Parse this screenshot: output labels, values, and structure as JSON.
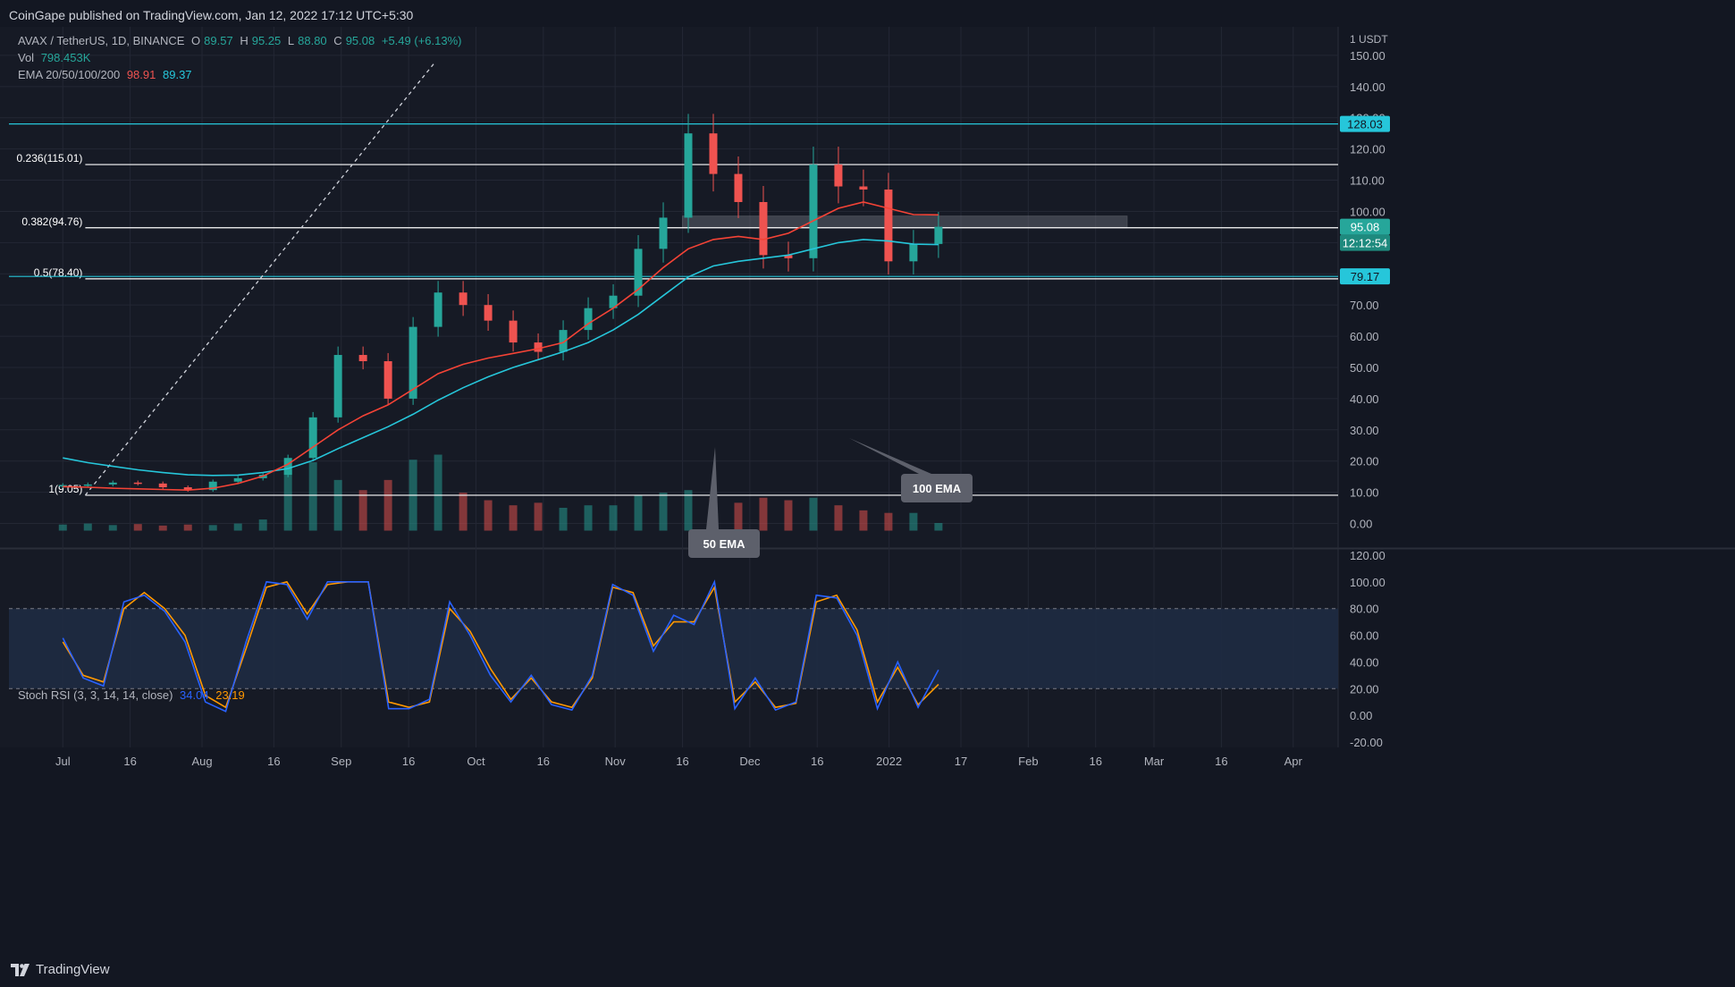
{
  "header": {
    "published": "CoinGape published on TradingView.com, Jan 12, 2022 17:12 UTC+5:30"
  },
  "legend": {
    "symbol": "AVAX / TetherUS, 1D, BINANCE",
    "o_label": "O",
    "o": "89.57",
    "h_label": "H",
    "h": "95.25",
    "l_label": "L",
    "l": "88.80",
    "c_label": "C",
    "c": "95.08",
    "change": "+5.49 (+6.13%)",
    "vol_label": "Vol",
    "vol": "798.453K",
    "ema_label": "EMA 20/50/100/200",
    "ema_a": "98.91",
    "ema_b": "89.37",
    "stoch_label": "Stoch RSI (3, 3, 14, 14, close)",
    "stoch_k": "34.04",
    "stoch_d": "23.19"
  },
  "footer": {
    "brand": "TradingView"
  },
  "colors": {
    "bg": "#161a25",
    "grid": "#232734",
    "up": "#26a69a",
    "down": "#ef5350",
    "ema50": "#f44336",
    "ema100": "#26c6da",
    "fib": "#ffffff",
    "stoch_k": "#2962ff",
    "stoch_d": "#ff9800"
  },
  "chart_data": [
    {
      "type": "candlestick",
      "title": "AVAX / TetherUS, 1D, BINANCE",
      "y_unit": "USDT",
      "scale_label": "1",
      "ylim": [
        -3,
        158
      ],
      "yticks": [
        0,
        10,
        20,
        30,
        40,
        50,
        60,
        70,
        80,
        90,
        100,
        110,
        120,
        130,
        140,
        150
      ],
      "ytick_labels": [
        "0.00",
        "10.00",
        "20.00",
        "30.00",
        "40.00",
        "50.00",
        "60.00",
        "70.00",
        "80.00",
        "90.00",
        "100.00",
        "110.00",
        "120.00",
        "130.00",
        "140.00",
        "150.00"
      ],
      "x_tick_labels": [
        "Jul",
        "16",
        "Aug",
        "16",
        "Sep",
        "16",
        "Oct",
        "16",
        "Nov",
        "16",
        "Dec",
        "16",
        "2022",
        "17",
        "Feb",
        "16",
        "Mar",
        "16",
        "Apr"
      ],
      "x_tick_days": [
        0,
        15,
        31,
        47,
        62,
        77,
        92,
        107,
        123,
        138,
        153,
        168,
        184,
        200,
        215,
        230,
        243,
        258,
        274
      ],
      "x_range_days": [
        -12,
        284
      ],
      "x_ref": "day 0 = 2021-07-01",
      "closes_weekly": [
        12.3,
        12.5,
        13.1,
        12.8,
        11.6,
        10.7,
        13.4,
        14.5,
        15.6,
        21.0,
        34.0,
        54.0,
        52.0,
        40.0,
        63.0,
        74.0,
        70.0,
        65.0,
        58.0,
        55.0,
        62.0,
        69.0,
        73.0,
        88.0,
        98.0,
        125.0,
        112.0,
        103.0,
        86.0,
        85.0,
        115.0,
        108.0,
        107.0,
        84.0,
        89.57,
        95.08
      ],
      "ema50": [
        11.8,
        11.6,
        11.3,
        11.1,
        10.9,
        10.7,
        11.3,
        12.8,
        15.2,
        19.0,
        24.5,
        30.0,
        34.5,
        38.0,
        43.0,
        48.0,
        51.0,
        53.0,
        54.5,
        56.0,
        58.0,
        64.0,
        69.0,
        75.0,
        82.0,
        88.0,
        91.0,
        92.0,
        91.0,
        93.0,
        97.0,
        101.0,
        103.0,
        101.0,
        99.0,
        98.91
      ],
      "ema100": [
        21.0,
        19.5,
        18.3,
        17.2,
        16.3,
        15.6,
        15.4,
        15.5,
        16.3,
        17.6,
        20.2,
        24.0,
        27.5,
        31.0,
        35.0,
        39.5,
        43.5,
        47.0,
        50.0,
        52.5,
        55.0,
        58.0,
        62.0,
        67.0,
        73.0,
        79.0,
        82.5,
        84.0,
        85.0,
        86.0,
        88.0,
        90.0,
        91.0,
        90.5,
        89.5,
        89.37
      ],
      "volume_weekly": [
        1.2,
        1.4,
        1.1,
        1.3,
        1.0,
        1.2,
        1.1,
        1.4,
        2.2,
        12.0,
        13.5,
        10.0,
        8.0,
        10.0,
        14.0,
        15.0,
        7.5,
        6.0,
        5.0,
        5.5,
        4.5,
        5.0,
        5.0,
        7.0,
        7.5,
        8.0,
        6.5,
        5.5,
        6.5,
        6.0,
        6.5,
        5.0,
        4.0,
        3.5,
        3.5,
        1.5
      ],
      "horizontal_levels": [
        {
          "label": "0.236(115.01)",
          "value": 115.01
        },
        {
          "label": "0.382(94.76)",
          "value": 94.76
        },
        {
          "label": "0.5(78.40)",
          "value": 78.4
        },
        {
          "label": "1(9.05)",
          "value": 9.05
        }
      ],
      "resistance_lines": [
        128.03,
        79.17
      ],
      "price_badges": [
        {
          "text": "128.03",
          "value": 128.03
        },
        {
          "text": "95.08",
          "value": 95.08
        },
        {
          "text": "12:12:54",
          "value": 95.08
        },
        {
          "text": "79.17",
          "value": 79.17
        }
      ],
      "annotations": [
        "50 EMA",
        "100 EMA"
      ],
      "supply_zone": [
        94.76,
        98.5
      ]
    },
    {
      "type": "line",
      "title": "Stoch RSI (3, 3, 14, 14, close)",
      "ylim": [
        -24,
        124
      ],
      "yticks": [
        -20,
        0,
        20,
        40,
        60,
        80,
        100,
        120
      ],
      "ytick_labels": [
        "-20.00",
        "0.00",
        "20.00",
        "40.00",
        "60.00",
        "80.00",
        "100.00",
        "120.00"
      ],
      "bands": [
        20,
        80
      ],
      "series": [
        {
          "name": "K",
          "values": [
            58,
            28,
            22,
            85,
            90,
            78,
            55,
            10,
            3,
            55,
            100,
            98,
            72,
            100,
            100,
            100,
            5,
            5,
            12,
            85,
            60,
            30,
            10,
            30,
            8,
            4,
            30,
            98,
            90,
            48,
            75,
            68,
            100,
            5,
            28,
            4,
            10,
            90,
            88,
            60,
            5,
            40,
            6,
            34.04
          ]
        },
        {
          "name": "D",
          "values": [
            55,
            30,
            25,
            80,
            92,
            80,
            60,
            15,
            6,
            50,
            96,
            100,
            76,
            98,
            100,
            100,
            10,
            6,
            10,
            80,
            63,
            35,
            12,
            28,
            10,
            6,
            28,
            96,
            92,
            52,
            70,
            70,
            96,
            10,
            25,
            6,
            9,
            85,
            90,
            64,
            10,
            36,
            8,
            23.19
          ]
        }
      ]
    }
  ]
}
